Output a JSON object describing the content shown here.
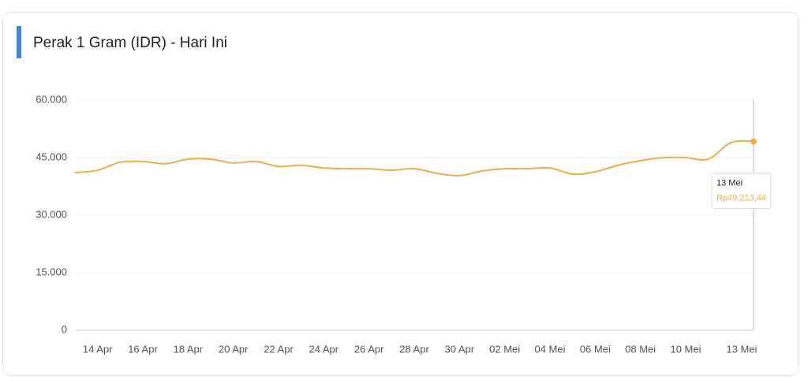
{
  "chart_data": {
    "type": "line",
    "title": "Perak 1 Gram (IDR) - Hari Ini",
    "categories": [
      null,
      "14 Apr",
      null,
      "16 Apr",
      null,
      "18 Apr",
      null,
      "20 Apr",
      null,
      "22 Apr",
      null,
      "24 Apr",
      null,
      "26 Apr",
      null,
      "28 Apr",
      null,
      "30 Apr",
      null,
      "02 Mei",
      null,
      "04 Mei",
      null,
      "06 Mei",
      null,
      "08 Mei",
      null,
      "10 Mei",
      null,
      null,
      "13 Mei"
    ],
    "series": [
      {
        "color": "#efab4c",
        "values": [
          41100,
          41700,
          43800,
          44000,
          43400,
          44600,
          44600,
          43600,
          44000,
          42700,
          43000,
          42300,
          42100,
          42100,
          41700,
          42100,
          40900,
          40300,
          41500,
          42100,
          42100,
          42300,
          40700,
          41300,
          43000,
          44200,
          45000,
          45000,
          44600,
          48900,
          49213.44
        ]
      }
    ],
    "ylim": [
      0,
      60000
    ],
    "yticks": [
      0,
      {
        "value": 15000,
        "label": "15.000"
      },
      {
        "value": 30000,
        "label": "30.000"
      },
      {
        "value": 45000,
        "label": "45.000"
      },
      {
        "value": 60000,
        "label": "60.000"
      }
    ],
    "grid": true,
    "tooltip": {
      "title": "13 Mei",
      "label": "Rp49.213,44"
    }
  }
}
